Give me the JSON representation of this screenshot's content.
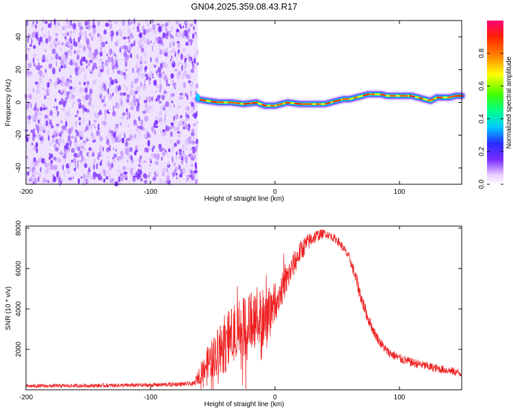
{
  "title": "GN04.2025.359.08.43.R17",
  "chart_data": [
    {
      "type": "heatmap",
      "name": "spectrogram",
      "xlabel": "Height of straight line (km)",
      "ylabel": "Frequency (Hz)",
      "xlim": [
        -200,
        150
      ],
      "ylim": [
        -50,
        50
      ],
      "xticks": [
        -200,
        -100,
        0,
        100
      ],
      "yticks": [
        -40,
        -20,
        0,
        20,
        40
      ],
      "noise_region_x": [
        -200,
        -62
      ],
      "signal_track": {
        "x": [
          -62,
          -55,
          -45,
          -35,
          -25,
          -15,
          -8,
          0,
          10,
          20,
          30,
          40,
          45,
          50,
          55,
          60,
          65,
          70,
          75,
          80,
          85,
          90,
          95,
          100,
          110,
          115,
          120,
          125,
          130,
          140,
          145,
          150
        ],
        "freq": [
          2,
          1,
          0,
          0,
          -1,
          0,
          -2,
          -2,
          0,
          -1,
          -1,
          -1,
          0,
          1,
          2,
          2,
          3,
          4,
          5,
          5,
          5,
          4,
          4,
          4,
          4,
          3,
          2,
          1,
          3,
          3,
          4,
          4
        ]
      },
      "colorbar": {
        "label": "Normalized spectral amplitude",
        "range": [
          0,
          1
        ],
        "ticks": [
          "0.0",
          "0.2",
          "0.4",
          "0.6",
          "0.8"
        ]
      }
    },
    {
      "type": "line",
      "name": "snr",
      "xlabel": "Height of straight line (km)",
      "ylabel": "SNR (10 * v/v)",
      "xlim": [
        -200,
        150
      ],
      "ylim": [
        0,
        8100
      ],
      "xticks": [
        -200,
        -100,
        0,
        100
      ],
      "yticks": [
        2000,
        4000,
        6000,
        8000
      ],
      "color": "#ee2222",
      "envelope": {
        "x": [
          -200,
          -100,
          -65,
          -60,
          -55,
          -50,
          -45,
          -40,
          -35,
          -30,
          -25,
          -20,
          -15,
          -10,
          -5,
          0,
          5,
          10,
          15,
          20,
          25,
          30,
          35,
          40,
          45,
          50,
          55,
          60,
          65,
          70,
          75,
          80,
          85,
          90,
          100,
          110,
          120,
          130,
          140,
          150
        ],
        "y": [
          180,
          230,
          300,
          800,
          1300,
          1600,
          2000,
          2300,
          2600,
          2900,
          3100,
          3300,
          3700,
          3600,
          3900,
          4300,
          4900,
          5500,
          6200,
          6800,
          7200,
          7500,
          7650,
          7750,
          7600,
          7400,
          7000,
          6500,
          5500,
          4400,
          3500,
          2800,
          2300,
          1900,
          1550,
          1350,
          1200,
          1050,
          950,
          800
        ]
      },
      "noise_amplitude": {
        "x": [
          -200,
          -65,
          -60,
          -40,
          -5,
          0,
          40,
          60,
          66,
          80,
          150
        ],
        "y": [
          90,
          110,
          500,
          1500,
          1600,
          900,
          200,
          220,
          400,
          250,
          200
        ]
      }
    }
  ]
}
